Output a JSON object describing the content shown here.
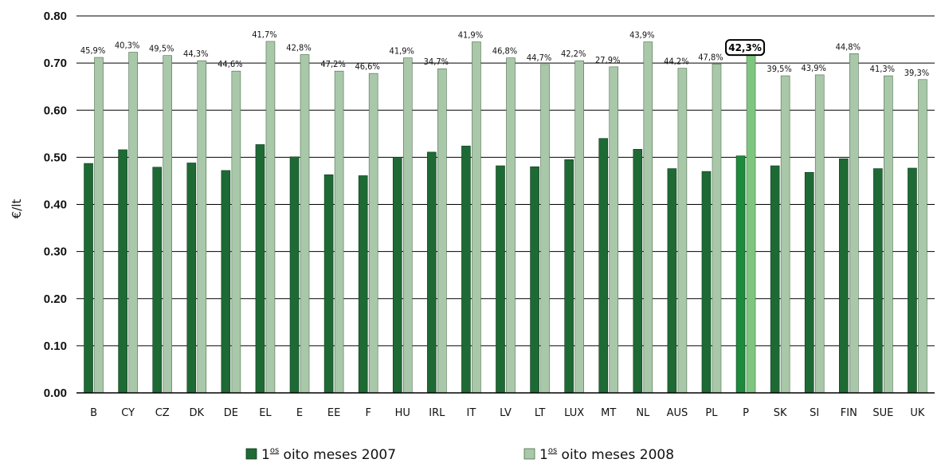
{
  "chart_data": {
    "type": "bar",
    "ylabel": "€/lt",
    "ylim": [
      0,
      0.8
    ],
    "yticks": [
      "0.00",
      "0.10",
      "0.20",
      "0.30",
      "0.40",
      "0.50",
      "0.60",
      "0.70",
      "0.80"
    ],
    "ytick_values": [
      0,
      0.1,
      0.2,
      0.3,
      0.4,
      0.5,
      0.6,
      0.7,
      0.8
    ],
    "grid": true,
    "categories": [
      "B",
      "CY",
      "CZ",
      "DK",
      "DE",
      "EL",
      "E",
      "EE",
      "F",
      "HU",
      "IRL",
      "IT",
      "LV",
      "LT",
      "LUX",
      "MT",
      "NL",
      "AUS",
      "PL",
      "P",
      "SK",
      "SI",
      "FIN",
      "SUE",
      "UK"
    ],
    "series": [
      {
        "name": "1os oito meses 2007",
        "legend_main": "1",
        "legend_sup": "os",
        "legend_rest": "oito meses 2007",
        "color": "#1e6a34",
        "highlight_color": "#1e8a3c",
        "values": [
          0.487,
          0.516,
          0.479,
          0.488,
          0.472,
          0.527,
          0.501,
          0.463,
          0.461,
          0.5,
          0.511,
          0.524,
          0.482,
          0.48,
          0.495,
          0.54,
          0.517,
          0.476,
          0.47,
          0.503,
          0.482,
          0.468,
          0.497,
          0.476,
          0.477
        ]
      },
      {
        "name": "1os oito meses 2008",
        "legend_main": "1",
        "legend_sup": "os",
        "legend_rest": "oito meses 2008",
        "color": "#a9c8a9",
        "highlight_color": "#7ec67f",
        "values": [
          0.712,
          0.723,
          0.716,
          0.705,
          0.683,
          0.746,
          0.718,
          0.683,
          0.678,
          0.711,
          0.688,
          0.745,
          0.711,
          0.697,
          0.705,
          0.692,
          0.745,
          0.689,
          0.698,
          0.717,
          0.673,
          0.675,
          0.72,
          0.673,
          0.665
        ]
      }
    ],
    "percent_labels": [
      "45,9%",
      "40,3%",
      "49,5%",
      "44,3%",
      "44,6%",
      "41,7%",
      "42,8%",
      "47,2%",
      "46,6%",
      "41,9%",
      "34,7%",
      "41,9%",
      "46,8%",
      "44,7%",
      "42,2%",
      "27,9%",
      "43,9%",
      "44,2%",
      "47,8%",
      "42,3%",
      "39,5%",
      "43,9%",
      "44,8%",
      "41,3%",
      "39,3%"
    ],
    "highlight_category": "P",
    "legend_position": "bottom"
  }
}
